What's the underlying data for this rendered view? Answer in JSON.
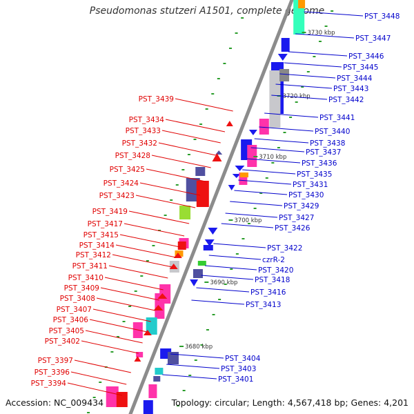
{
  "title": "Pseudomonas stutzeri A1501, complete genome",
  "accession": "Accession: NC_009434",
  "summary": "Topology: circular; Length: 4,567,418 bp; Genes: 4,201",
  "colors": {
    "backbone": "#8c8c8c",
    "forward_label": "#0000cc",
    "reverse_label": "#e00000",
    "tick_mark": "#2a9d2a"
  },
  "scale_ticks": [
    "3730 kbp",
    "3720 kbp",
    "3710 kbp",
    "3700 kbp",
    "3690 kbp",
    "3680 kbp"
  ],
  "forward_genes": [
    "PST_3448",
    "PST_3447",
    "PST_3446",
    "PST_3445",
    "PST_3444",
    "PST_3443",
    "PST_3442",
    "PST_3441",
    "PST_3440",
    "PST_3438",
    "PST_3437",
    "PST_3436",
    "PST_3435",
    "PST_3431",
    "PST_3430",
    "PST_3429",
    "PST_3427",
    "PST_3426",
    "PST_3422",
    "czrR-2",
    "PST_3420",
    "PST_3418",
    "PST_3416",
    "PST_3413",
    "PST_3404",
    "PST_3403",
    "PST_3401"
  ],
  "reverse_genes": [
    "PST_3439",
    "PST_3434",
    "PST_3433",
    "PST_3432",
    "PST_3428",
    "PST_3425",
    "PST_3424",
    "PST_3423",
    "PST_3419",
    "PST_3417",
    "PST_3415",
    "PST_3414",
    "PST_3412",
    "PST_3411",
    "PST_3410",
    "PST_3409",
    "PST_3408",
    "PST_3407",
    "PST_3406",
    "PST_3405",
    "PST_3402",
    "PST_3397",
    "PST_3396",
    "PST_3394"
  ]
}
